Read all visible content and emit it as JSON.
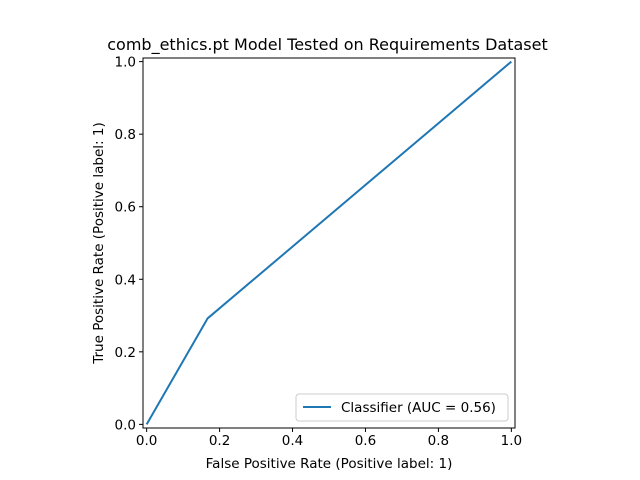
{
  "chart_data": {
    "type": "line",
    "title": "comb_ethics.pt Model Tested on Requirements Dataset",
    "xlabel": "False Positive Rate (Positive label: 1)",
    "ylabel": "True Positive Rate (Positive label: 1)",
    "xlim": [
      -0.01,
      1.01
    ],
    "ylim": [
      -0.01,
      1.01
    ],
    "xticks": [
      0.0,
      0.2,
      0.4,
      0.6,
      0.8,
      1.0
    ],
    "yticks": [
      0.0,
      0.2,
      0.4,
      0.6,
      0.8,
      1.0
    ],
    "xtick_labels": [
      "0.0",
      "0.2",
      "0.4",
      "0.6",
      "0.8",
      "1.0"
    ],
    "ytick_labels": [
      "0.0",
      "0.2",
      "0.4",
      "0.6",
      "0.8",
      "1.0"
    ],
    "grid": false,
    "legend_position": "bottom-right",
    "series": [
      {
        "name": "Classifier (AUC = 0.56)",
        "color": "#1f77b4",
        "x": [
          0.0,
          0.167,
          1.0
        ],
        "y": [
          0.0,
          0.292,
          1.0
        ]
      }
    ]
  }
}
